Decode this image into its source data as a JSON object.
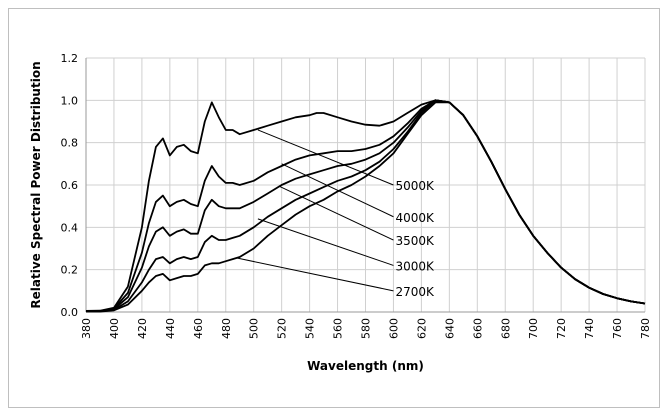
{
  "chart_data": {
    "type": "line",
    "title": "",
    "xlabel": "Wavelength (nm)",
    "ylabel": "Relative Spectral Power Distribution",
    "xlim": [
      380,
      780
    ],
    "ylim": [
      0,
      1.2
    ],
    "x_ticks": [
      380,
      400,
      420,
      440,
      460,
      480,
      500,
      520,
      540,
      560,
      580,
      600,
      620,
      640,
      660,
      680,
      700,
      720,
      740,
      760,
      780
    ],
    "y_ticks": [
      0,
      0.2,
      0.4,
      0.6,
      0.8,
      1.0,
      1.2
    ],
    "y_tick_labels": [
      "0.0",
      "0.2",
      "0.4",
      "0.6",
      "0.8",
      "1.0",
      "1.2"
    ],
    "grid": true,
    "legend": "none",
    "series": [
      {
        "name": "5000K",
        "points": [
          [
            380,
            0.005
          ],
          [
            390,
            0.006
          ],
          [
            400,
            0.02
          ],
          [
            410,
            0.12
          ],
          [
            420,
            0.4
          ],
          [
            425,
            0.62
          ],
          [
            430,
            0.78
          ],
          [
            435,
            0.82
          ],
          [
            440,
            0.74
          ],
          [
            445,
            0.78
          ],
          [
            450,
            0.79
          ],
          [
            455,
            0.76
          ],
          [
            460,
            0.75
          ],
          [
            465,
            0.9
          ],
          [
            470,
            0.99
          ],
          [
            475,
            0.92
          ],
          [
            480,
            0.86
          ],
          [
            485,
            0.86
          ],
          [
            490,
            0.84
          ],
          [
            500,
            0.86
          ],
          [
            510,
            0.88
          ],
          [
            520,
            0.9
          ],
          [
            530,
            0.92
          ],
          [
            540,
            0.93
          ],
          [
            545,
            0.94
          ],
          [
            550,
            0.94
          ],
          [
            560,
            0.92
          ],
          [
            570,
            0.9
          ],
          [
            580,
            0.885
          ],
          [
            590,
            0.88
          ],
          [
            600,
            0.9
          ],
          [
            610,
            0.94
          ],
          [
            620,
            0.98
          ],
          [
            630,
            1.0
          ],
          [
            640,
            0.99
          ],
          [
            650,
            0.93
          ],
          [
            660,
            0.83
          ],
          [
            670,
            0.71
          ],
          [
            680,
            0.58
          ],
          [
            690,
            0.46
          ],
          [
            700,
            0.36
          ],
          [
            710,
            0.28
          ],
          [
            720,
            0.21
          ],
          [
            730,
            0.155
          ],
          [
            740,
            0.115
          ],
          [
            750,
            0.085
          ],
          [
            760,
            0.065
          ],
          [
            770,
            0.05
          ],
          [
            780,
            0.04
          ]
        ],
        "label_y": 0.0
      },
      {
        "name": "4000K",
        "points": [
          [
            380,
            0.004
          ],
          [
            390,
            0.005
          ],
          [
            400,
            0.016
          ],
          [
            410,
            0.09
          ],
          [
            420,
            0.28
          ],
          [
            425,
            0.42
          ],
          [
            430,
            0.52
          ],
          [
            435,
            0.55
          ],
          [
            440,
            0.5
          ],
          [
            445,
            0.52
          ],
          [
            450,
            0.53
          ],
          [
            455,
            0.51
          ],
          [
            460,
            0.5
          ],
          [
            465,
            0.62
          ],
          [
            470,
            0.69
          ],
          [
            475,
            0.64
          ],
          [
            480,
            0.61
          ],
          [
            485,
            0.61
          ],
          [
            490,
            0.6
          ],
          [
            500,
            0.62
          ],
          [
            510,
            0.66
          ],
          [
            520,
            0.69
          ],
          [
            530,
            0.72
          ],
          [
            540,
            0.74
          ],
          [
            550,
            0.75
          ],
          [
            560,
            0.76
          ],
          [
            570,
            0.76
          ],
          [
            580,
            0.77
          ],
          [
            590,
            0.79
          ],
          [
            600,
            0.83
          ],
          [
            610,
            0.89
          ],
          [
            620,
            0.96
          ],
          [
            630,
            1.0
          ],
          [
            640,
            0.99
          ],
          [
            650,
            0.93
          ],
          [
            660,
            0.83
          ],
          [
            670,
            0.71
          ],
          [
            680,
            0.58
          ],
          [
            690,
            0.46
          ],
          [
            700,
            0.36
          ],
          [
            710,
            0.28
          ],
          [
            720,
            0.21
          ],
          [
            730,
            0.155
          ],
          [
            740,
            0.115
          ],
          [
            750,
            0.085
          ],
          [
            760,
            0.065
          ],
          [
            770,
            0.05
          ],
          [
            780,
            0.04
          ]
        ]
      },
      {
        "name": "3500K",
        "points": [
          [
            380,
            0.003
          ],
          [
            390,
            0.004
          ],
          [
            400,
            0.013
          ],
          [
            410,
            0.07
          ],
          [
            420,
            0.21
          ],
          [
            425,
            0.31
          ],
          [
            430,
            0.38
          ],
          [
            435,
            0.4
          ],
          [
            440,
            0.36
          ],
          [
            445,
            0.38
          ],
          [
            450,
            0.39
          ],
          [
            455,
            0.37
          ],
          [
            460,
            0.37
          ],
          [
            465,
            0.48
          ],
          [
            470,
            0.53
          ],
          [
            475,
            0.5
          ],
          [
            480,
            0.49
          ],
          [
            485,
            0.49
          ],
          [
            490,
            0.49
          ],
          [
            500,
            0.52
          ],
          [
            510,
            0.56
          ],
          [
            520,
            0.6
          ],
          [
            530,
            0.63
          ],
          [
            540,
            0.65
          ],
          [
            550,
            0.67
          ],
          [
            560,
            0.69
          ],
          [
            570,
            0.7
          ],
          [
            580,
            0.72
          ],
          [
            590,
            0.75
          ],
          [
            600,
            0.8
          ],
          [
            610,
            0.87
          ],
          [
            620,
            0.95
          ],
          [
            630,
            1.0
          ],
          [
            640,
            0.99
          ],
          [
            650,
            0.93
          ],
          [
            660,
            0.83
          ],
          [
            670,
            0.71
          ],
          [
            680,
            0.58
          ],
          [
            690,
            0.46
          ],
          [
            700,
            0.36
          ],
          [
            710,
            0.28
          ],
          [
            720,
            0.21
          ],
          [
            730,
            0.155
          ],
          [
            740,
            0.115
          ],
          [
            750,
            0.085
          ],
          [
            760,
            0.065
          ],
          [
            770,
            0.05
          ],
          [
            780,
            0.04
          ]
        ]
      },
      {
        "name": "3000K",
        "points": [
          [
            380,
            0.002
          ],
          [
            390,
            0.003
          ],
          [
            400,
            0.01
          ],
          [
            410,
            0.05
          ],
          [
            420,
            0.14
          ],
          [
            425,
            0.2
          ],
          [
            430,
            0.25
          ],
          [
            435,
            0.26
          ],
          [
            440,
            0.23
          ],
          [
            445,
            0.25
          ],
          [
            450,
            0.26
          ],
          [
            455,
            0.25
          ],
          [
            460,
            0.26
          ],
          [
            465,
            0.33
          ],
          [
            470,
            0.36
          ],
          [
            475,
            0.34
          ],
          [
            480,
            0.34
          ],
          [
            485,
            0.35
          ],
          [
            490,
            0.36
          ],
          [
            500,
            0.4
          ],
          [
            510,
            0.45
          ],
          [
            520,
            0.49
          ],
          [
            530,
            0.53
          ],
          [
            540,
            0.56
          ],
          [
            550,
            0.59
          ],
          [
            560,
            0.62
          ],
          [
            570,
            0.64
          ],
          [
            580,
            0.67
          ],
          [
            590,
            0.71
          ],
          [
            600,
            0.77
          ],
          [
            610,
            0.85
          ],
          [
            620,
            0.94
          ],
          [
            630,
            1.0
          ],
          [
            640,
            0.99
          ],
          [
            650,
            0.93
          ],
          [
            660,
            0.83
          ],
          [
            670,
            0.71
          ],
          [
            680,
            0.58
          ],
          [
            690,
            0.46
          ],
          [
            700,
            0.36
          ],
          [
            710,
            0.28
          ],
          [
            720,
            0.21
          ],
          [
            730,
            0.155
          ],
          [
            740,
            0.115
          ],
          [
            750,
            0.085
          ],
          [
            760,
            0.065
          ],
          [
            770,
            0.05
          ],
          [
            780,
            0.04
          ]
        ]
      },
      {
        "name": "2700K",
        "points": [
          [
            380,
            0.002
          ],
          [
            390,
            0.002
          ],
          [
            400,
            0.008
          ],
          [
            410,
            0.035
          ],
          [
            420,
            0.1
          ],
          [
            425,
            0.14
          ],
          [
            430,
            0.17
          ],
          [
            435,
            0.18
          ],
          [
            440,
            0.15
          ],
          [
            445,
            0.16
          ],
          [
            450,
            0.17
          ],
          [
            455,
            0.17
          ],
          [
            460,
            0.18
          ],
          [
            465,
            0.22
          ],
          [
            470,
            0.23
          ],
          [
            475,
            0.23
          ],
          [
            480,
            0.24
          ],
          [
            485,
            0.25
          ],
          [
            490,
            0.26
          ],
          [
            500,
            0.3
          ],
          [
            510,
            0.36
          ],
          [
            520,
            0.41
          ],
          [
            530,
            0.46
          ],
          [
            540,
            0.5
          ],
          [
            550,
            0.53
          ],
          [
            560,
            0.57
          ],
          [
            570,
            0.6
          ],
          [
            580,
            0.64
          ],
          [
            590,
            0.69
          ],
          [
            600,
            0.75
          ],
          [
            610,
            0.84
          ],
          [
            620,
            0.93
          ],
          [
            630,
            0.99
          ],
          [
            640,
            0.99
          ],
          [
            650,
            0.93
          ],
          [
            660,
            0.83
          ],
          [
            670,
            0.71
          ],
          [
            680,
            0.58
          ],
          [
            690,
            0.46
          ],
          [
            700,
            0.36
          ],
          [
            710,
            0.28
          ],
          [
            720,
            0.21
          ],
          [
            730,
            0.155
          ],
          [
            740,
            0.115
          ],
          [
            750,
            0.085
          ],
          [
            760,
            0.065
          ],
          [
            770,
            0.05
          ],
          [
            780,
            0.04
          ]
        ]
      }
    ],
    "annotations": [
      {
        "text": "5000K",
        "line_from": [
          503,
          0.86
        ],
        "label_at": [
          600,
          0.6
        ]
      },
      {
        "text": "4000K",
        "line_from": [
          520,
          0.7
        ],
        "label_at": [
          600,
          0.45
        ]
      },
      {
        "text": "3500K",
        "line_from": [
          518,
          0.595
        ],
        "label_at": [
          600,
          0.34
        ]
      },
      {
        "text": "3000K",
        "line_from": [
          503,
          0.44
        ],
        "label_at": [
          600,
          0.22
        ]
      },
      {
        "text": "2700K",
        "line_from": [
          488,
          0.255
        ],
        "label_at": [
          600,
          0.1
        ]
      }
    ]
  }
}
